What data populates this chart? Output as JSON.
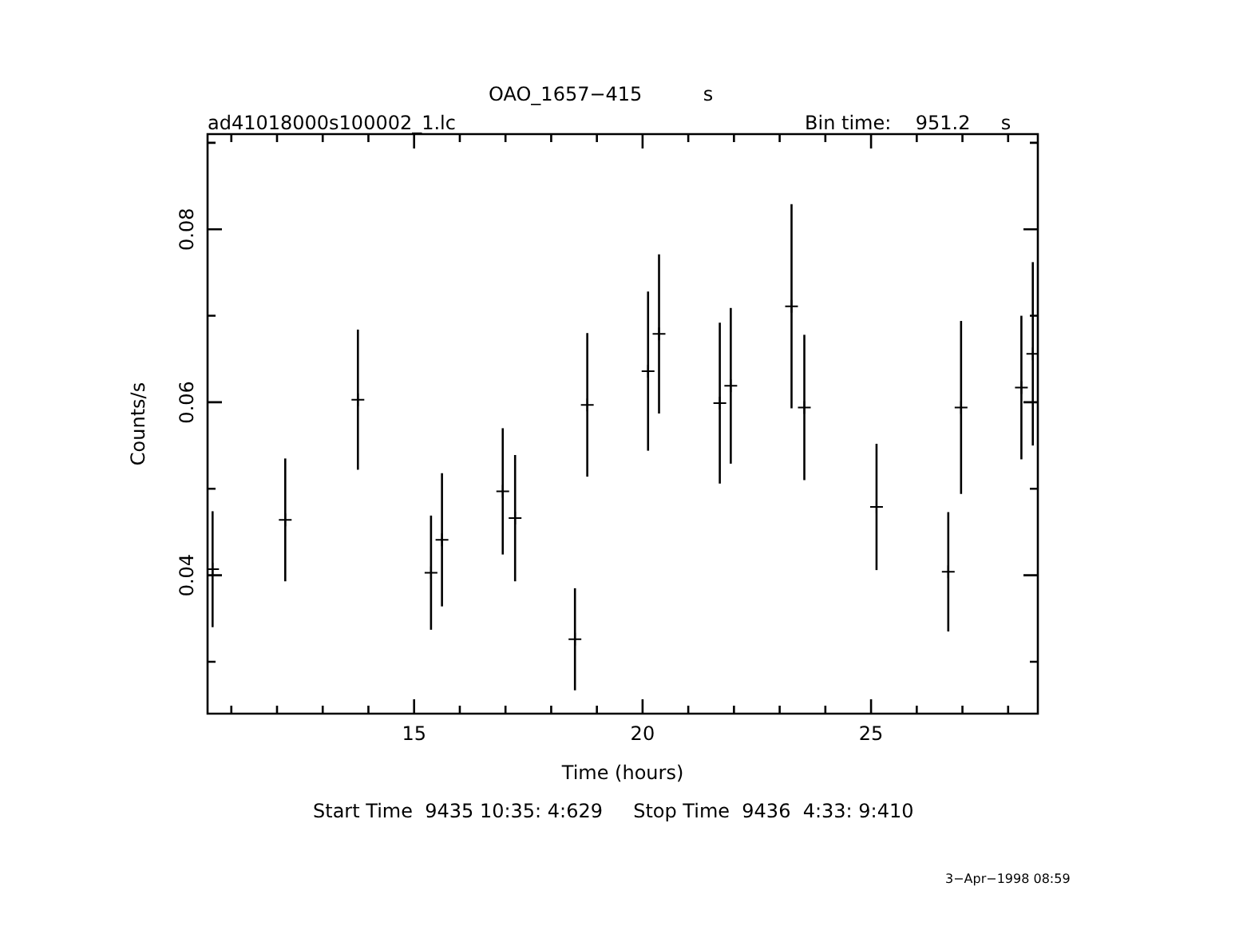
{
  "chart_data": {
    "type": "scatter",
    "title": "OAO_1657−415          s",
    "xlabel": "Time (hours)",
    "ylabel": "Counts/s",
    "annotations": [
      "ad41018000s100002_1.lc",
      "Bin time:    951.2     s",
      "Start Time  9435 10:35: 4:629     Stop Time  9436  4:33: 9:410",
      "3−Apr−1998 08:59"
    ],
    "x": [
      10.59,
      12.18,
      13.77,
      15.37,
      15.61,
      16.94,
      17.21,
      18.52,
      18.79,
      20.12,
      20.36,
      21.69,
      21.93,
      23.26,
      23.54,
      25.12,
      26.69,
      26.97,
      28.29,
      28.54
    ],
    "values": [
      0.0407,
      0.0464,
      0.0603,
      0.0403,
      0.0441,
      0.0497,
      0.0466,
      0.0326,
      0.0597,
      0.0636,
      0.0679,
      0.0599,
      0.0619,
      0.0711,
      0.0594,
      0.0479,
      0.0404,
      0.0594,
      0.0617,
      0.0656
    ],
    "errors": [
      0.0067,
      0.0071,
      0.0081,
      0.0066,
      0.0077,
      0.0073,
      0.0073,
      0.0059,
      0.0083,
      0.0092,
      0.0092,
      0.0093,
      0.009,
      0.0118,
      0.0084,
      0.0073,
      0.0069,
      0.01,
      0.0083,
      0.0106
    ],
    "color": "#000000",
    "marker": "cross",
    "legend": false,
    "xlim": [
      10.48,
      28.65
    ],
    "ylim": [
      0.024,
      0.091
    ],
    "xticks": [
      {
        "value": 11,
        "label": null
      },
      {
        "value": 12,
        "label": null
      },
      {
        "value": 13,
        "label": null
      },
      {
        "value": 14,
        "label": null
      },
      15,
      {
        "value": 16,
        "label": null
      },
      {
        "value": 17,
        "label": null
      },
      {
        "value": 18,
        "label": null
      },
      {
        "value": 19,
        "label": null
      },
      20,
      {
        "value": 21,
        "label": null
      },
      {
        "value": 22,
        "label": null
      },
      {
        "value": 23,
        "label": null
      },
      {
        "value": 24,
        "label": null
      },
      25,
      {
        "value": 26,
        "label": null
      },
      {
        "value": 27,
        "label": null
      },
      {
        "value": 28,
        "label": null
      }
    ],
    "yticks": [
      {
        "value": 0.03,
        "label": null
      },
      0.04,
      {
        "value": 0.05,
        "label": null
      },
      0.06,
      {
        "value": 0.07,
        "label": null
      },
      0.08,
      {
        "value": 0.09,
        "label": null
      }
    ]
  }
}
